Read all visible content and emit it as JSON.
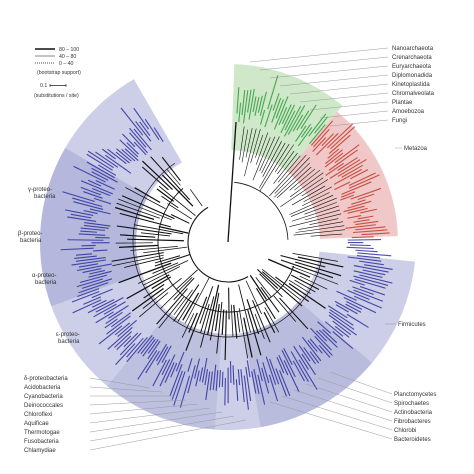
{
  "legend": {
    "title": "(bootstrap support)",
    "entries": [
      {
        "label": "80 – 100",
        "style": "thick"
      },
      {
        "label": "40 – 80",
        "style": "thin"
      },
      {
        "label": "0 – 40",
        "style": "dotted"
      }
    ],
    "scale_value": "0.1",
    "scale_caption": "(substitutions / site)"
  },
  "left_groups": [
    {
      "label": "γ-proteo-\nbacteria"
    },
    {
      "label": "β-proteo-\nbacteria"
    },
    {
      "label": "α-proteo-\nbacteria"
    },
    {
      "label": "ε-proteo-\nbacteria"
    }
  ],
  "bottom_left_labels": [
    "δ-proteobacteria",
    "Acidobacteria",
    "Cyanobacteria",
    "Deinococcales",
    "Chloroflexi",
    "Aquificae",
    "Thermotogae",
    "Fusobacteria",
    "Chlamydiae"
  ],
  "top_right_labels": [
    "Nanoarchaeota",
    "Crenarchaeota",
    "Euryarchaeota",
    "Diplomonadida",
    "Kinetoplastida",
    "Chromalveolata",
    "Plantae",
    "Amoebozoa",
    "Fungi"
  ],
  "metazoa_label": "Metazoa",
  "firmicutes_label": "Firmicutes",
  "bottom_right_labels": [
    "Planctomycetes",
    "Spirochaetes",
    "Actinobacteria",
    "Fibrobacteres",
    "Chlorobi",
    "Bacteroidetes"
  ],
  "colors": {
    "archaea_green": "#cfe8c9",
    "archaea_text": "#2f9a3a",
    "eukarya_red": "#f0c8c8",
    "eukarya_text": "#c0392b",
    "bacteria_band": "#c4c6e3",
    "bacteria_band_dark": "#a3a6d3",
    "bacteria_text": "#2b2f9c",
    "branch": "#111111",
    "leader": "#999999"
  }
}
